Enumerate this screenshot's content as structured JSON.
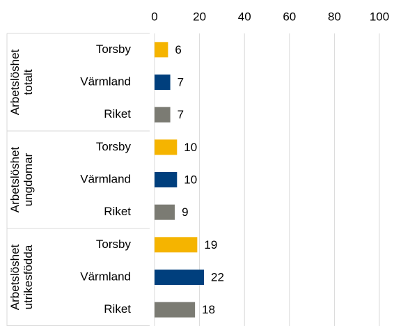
{
  "chart_data": {
    "type": "bar",
    "orientation": "horizontal",
    "groups": [
      {
        "name": "Arbetslöshet totalt",
        "categories": [
          "Torsby",
          "Värmland",
          "Riket"
        ],
        "values": [
          6,
          7,
          7
        ]
      },
      {
        "name": "Arbetslöshet ungdomar",
        "categories": [
          "Torsby",
          "Värmland",
          "Riket"
        ],
        "values": [
          10,
          10,
          9
        ]
      },
      {
        "name": "Arbetslöshet utrikesfödda",
        "categories": [
          "Torsby",
          "Värmland",
          "Riket"
        ],
        "values": [
          19,
          22,
          18
        ]
      }
    ],
    "colors": [
      "#f5b400",
      "#003f7d",
      "#7b7b73"
    ],
    "xlim": [
      0,
      100
    ],
    "xticks": [
      0,
      20,
      40,
      60,
      80,
      100
    ],
    "grid": true,
    "x_axis_position": "top"
  }
}
